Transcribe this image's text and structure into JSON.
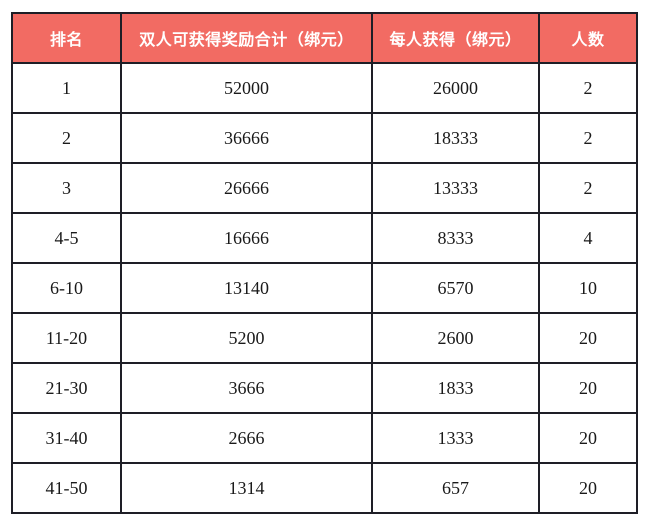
{
  "colors": {
    "header_bg": "#f26b63",
    "header_text": "#ffffff",
    "border": "#1e1e26",
    "body_text": "#1a1a1a",
    "page_bg": "#ffffff"
  },
  "table": {
    "columns": [
      {
        "label": "排名"
      },
      {
        "label": "双人可获得奖励合计（绑元）"
      },
      {
        "label": "每人获得（绑元）"
      },
      {
        "label": "人数"
      }
    ],
    "rows": [
      [
        "1",
        "52000",
        "26000",
        "2"
      ],
      [
        "2",
        "36666",
        "18333",
        "2"
      ],
      [
        "3",
        "26666",
        "13333",
        "2"
      ],
      [
        "4-5",
        "16666",
        "8333",
        "4"
      ],
      [
        "6-10",
        "13140",
        "6570",
        "10"
      ],
      [
        "11-20",
        "5200",
        "2600",
        "20"
      ],
      [
        "21-30",
        "3666",
        "1833",
        "20"
      ],
      [
        "31-40",
        "2666",
        "1333",
        "20"
      ],
      [
        "41-50",
        "1314",
        "657",
        "20"
      ]
    ]
  }
}
